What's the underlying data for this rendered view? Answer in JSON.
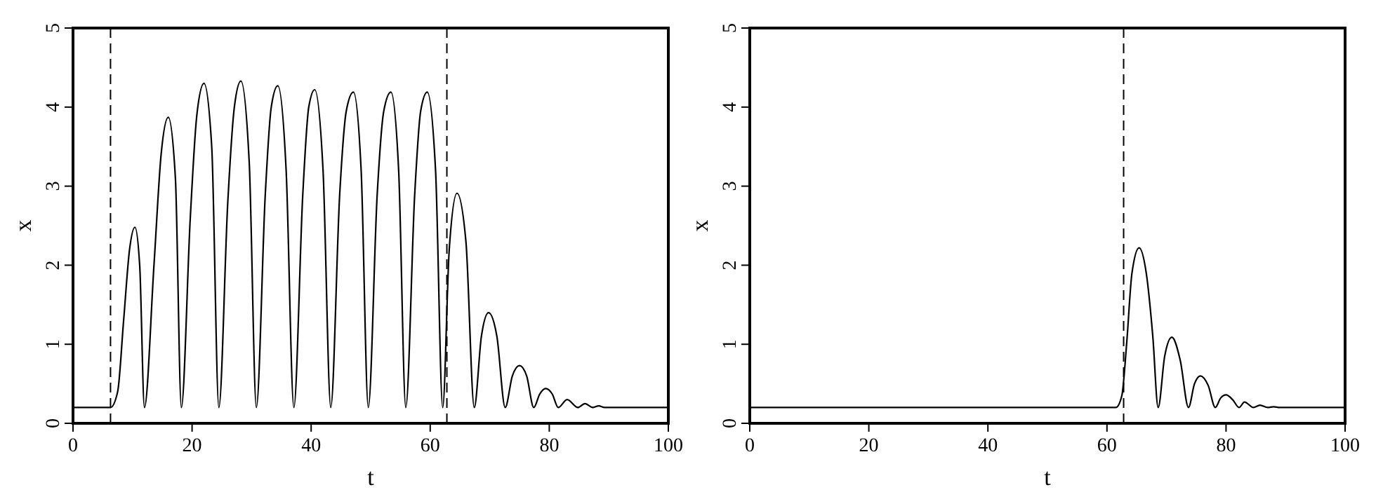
{
  "chart_data": [
    {
      "type": "line",
      "xlabel": "t",
      "ylabel": "x",
      "xlim": [
        0,
        100
      ],
      "xticks": [
        0,
        20,
        40,
        60,
        80,
        100
      ],
      "ylim": [
        0,
        5
      ],
      "yticks": [
        0,
        1,
        2,
        3,
        4,
        5
      ],
      "grid": false,
      "line_style": "solid",
      "ref_lines": [
        {
          "axis": "x",
          "value": 6.3,
          "line_style": "dashed",
          "color": "#000000"
        },
        {
          "axis": "x",
          "value": 62.8,
          "line_style": "dashed",
          "color": "#000000"
        }
      ],
      "series": [
        {
          "color": "#000000",
          "x": [
            0,
            6.3,
            7.5,
            8.5,
            9.5,
            10.4,
            11.2,
            12.0,
            13.6,
            14.8,
            16.0,
            17.2,
            18.2,
            19.7,
            20.8,
            22.0,
            23.3,
            24.5,
            26.0,
            27.1,
            28.2,
            29.6,
            30.8,
            32.3,
            33.3,
            34.4,
            35.8,
            37.1,
            38.6,
            39.6,
            40.6,
            42.0,
            43.3,
            44.8,
            45.9,
            47.1,
            48.4,
            49.6,
            51.1,
            52.2,
            53.4,
            54.7,
            55.9,
            57.4,
            58.4,
            59.5,
            60.9,
            62.1,
            63.2,
            64.5,
            66.0,
            67.4,
            68.6,
            69.8,
            71.2,
            72.6,
            73.8,
            75.0,
            76.2,
            77.4,
            78.4,
            79.4,
            80.5,
            81.5,
            83.0,
            84.8,
            86.0,
            87.3,
            88.3,
            89.3,
            100
          ],
          "values": [
            0.2,
            0.2,
            0.4,
            1.3,
            2.2,
            2.48,
            2.0,
            0.2,
            2.0,
            3.4,
            3.87,
            3.1,
            0.2,
            2.6,
            3.9,
            4.3,
            3.5,
            0.2,
            2.8,
            4.0,
            4.33,
            3.3,
            0.2,
            2.9,
            4.0,
            4.27,
            3.2,
            0.2,
            2.9,
            4.0,
            4.22,
            3.2,
            0.2,
            2.9,
            3.95,
            4.19,
            3.2,
            0.2,
            2.9,
            3.95,
            4.19,
            3.2,
            0.2,
            2.9,
            3.95,
            4.19,
            3.2,
            0.2,
            2.2,
            2.91,
            2.3,
            0.2,
            1.1,
            1.4,
            1.1,
            0.2,
            0.6,
            0.73,
            0.6,
            0.2,
            0.37,
            0.44,
            0.37,
            0.2,
            0.3,
            0.2,
            0.25,
            0.2,
            0.22,
            0.2,
            0.2
          ]
        }
      ]
    },
    {
      "type": "line",
      "xlabel": "t",
      "ylabel": "x",
      "xlim": [
        0,
        100
      ],
      "xticks": [
        0,
        20,
        40,
        60,
        80,
        100
      ],
      "ylim": [
        0,
        5
      ],
      "yticks": [
        0,
        1,
        2,
        3,
        4,
        5
      ],
      "grid": false,
      "line_style": "solid",
      "ref_lines": [
        {
          "axis": "x",
          "value": 62.8,
          "line_style": "dashed",
          "color": "#000000"
        }
      ],
      "series": [
        {
          "color": "#000000",
          "x": [
            0,
            61.5,
            62.5,
            63.3,
            64.2,
            65.4,
            66.6,
            67.7,
            68.6,
            69.7,
            70.9,
            72.3,
            73.7,
            74.7,
            75.7,
            77.0,
            78.2,
            79.1,
            80.0,
            81.1,
            82.2,
            83.1,
            84.6,
            85.7,
            87,
            88,
            89,
            100
          ],
          "values": [
            0.2,
            0.2,
            0.35,
            1.0,
            1.9,
            2.22,
            1.9,
            1.1,
            0.2,
            0.85,
            1.09,
            0.8,
            0.2,
            0.5,
            0.6,
            0.48,
            0.2,
            0.32,
            0.36,
            0.3,
            0.2,
            0.27,
            0.2,
            0.23,
            0.2,
            0.21,
            0.2,
            0.2
          ]
        }
      ]
    }
  ]
}
